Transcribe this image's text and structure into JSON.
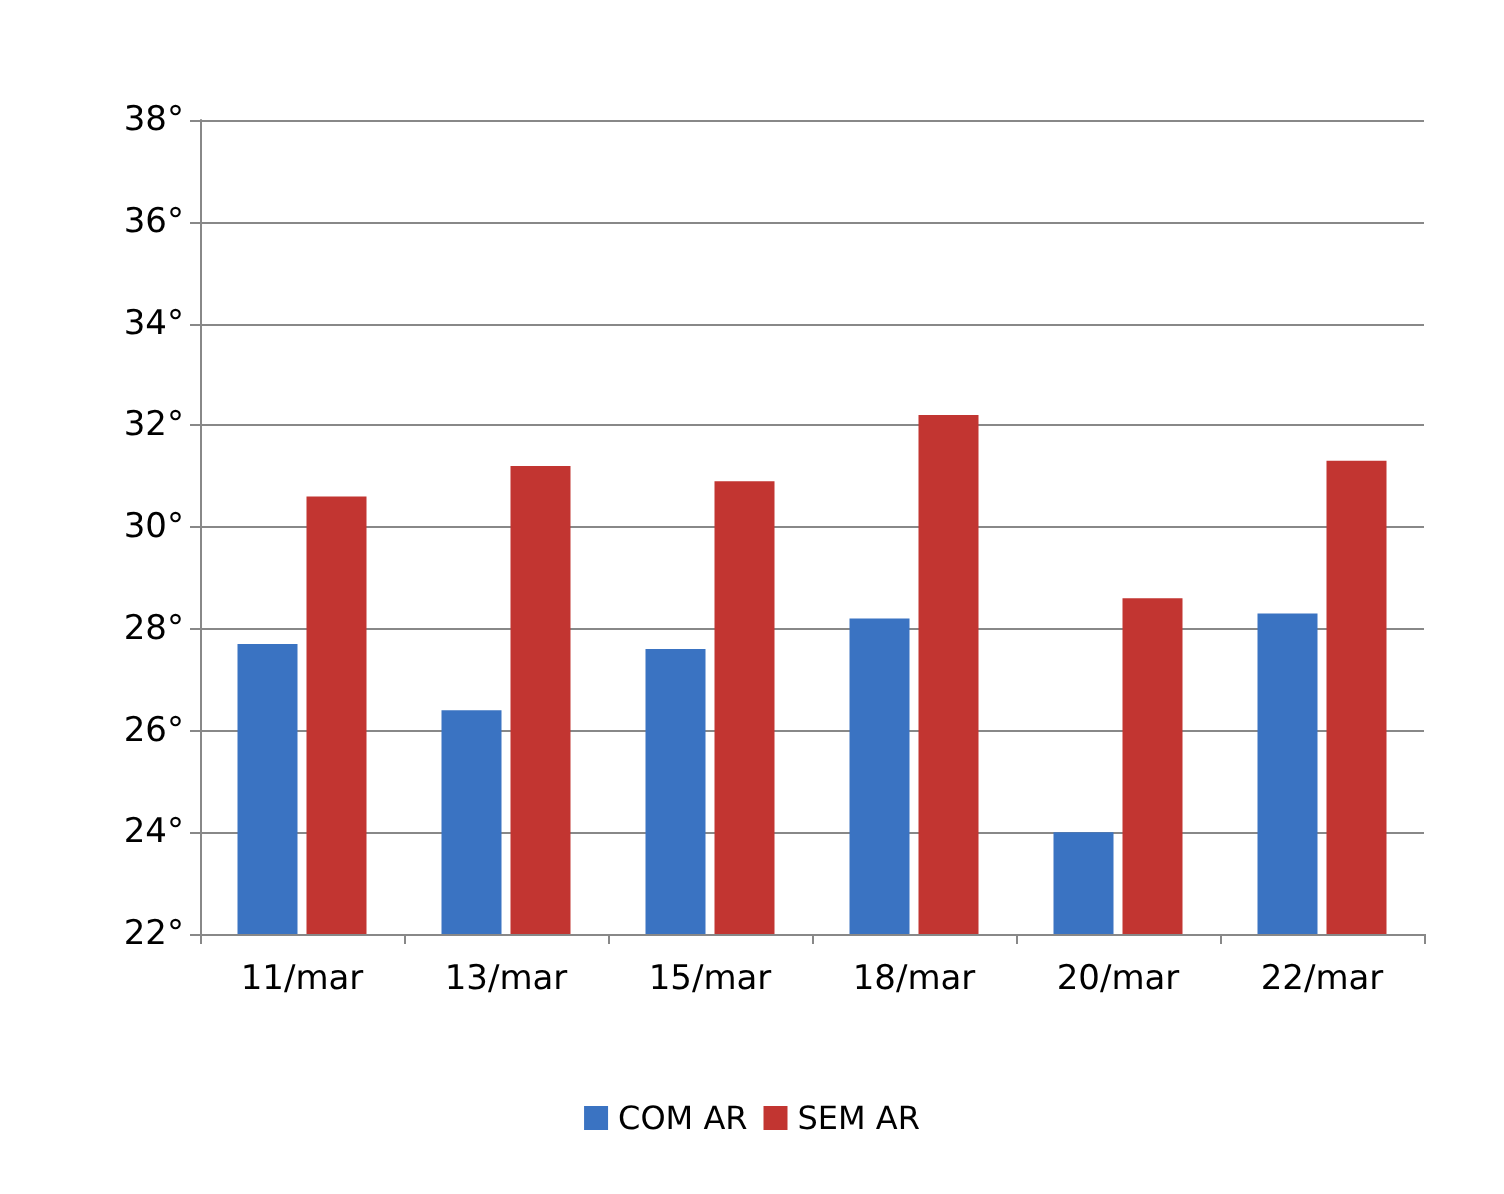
{
  "chart_data": {
    "type": "bar",
    "categories": [
      "11/mar",
      "13/mar",
      "15/mar",
      "18/mar",
      "20/mar",
      "22/mar"
    ],
    "series": [
      {
        "name": "COM AR",
        "color": "#3a73c2",
        "values": [
          27.7,
          26.4,
          27.6,
          28.2,
          24.0,
          28.3
        ]
      },
      {
        "name": "SEM AR",
        "color": "#c23531",
        "values": [
          30.6,
          31.2,
          30.9,
          32.2,
          28.6,
          31.3
        ]
      }
    ],
    "ylim": [
      22,
      38
    ],
    "yticks": [
      {
        "value": 22,
        "label": "22°"
      },
      {
        "value": 24,
        "label": "24°"
      },
      {
        "value": 26,
        "label": "26°"
      },
      {
        "value": 28,
        "label": "28°"
      },
      {
        "value": 30,
        "label": "30°"
      },
      {
        "value": 32,
        "label": "32°"
      },
      {
        "value": 34,
        "label": "34°"
      },
      {
        "value": 36,
        "label": "36°"
      },
      {
        "value": 38,
        "label": "38°"
      }
    ],
    "grid": "y",
    "legend": "bottom"
  }
}
